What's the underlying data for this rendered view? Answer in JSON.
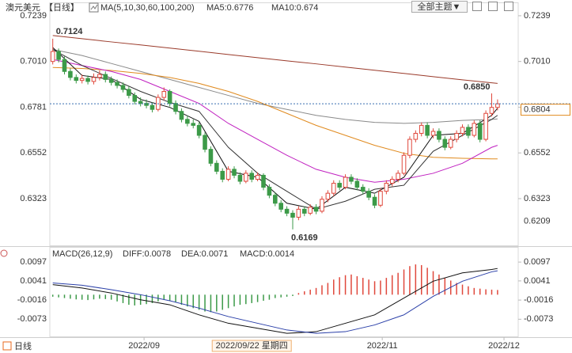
{
  "toolbar": {
    "theme_button": "全部主题▼"
  },
  "footer": {
    "period": "日线"
  },
  "chart_data": [
    {
      "type": "candlestick",
      "title": "澳元美元",
      "period": "【日线】",
      "indicator": "MA(5,10,30,60,100,200)",
      "readouts": [
        {
          "text": "MA5:0.6776",
          "color": "#222222"
        },
        {
          "text": "MA10:0.674",
          "color": "#3040c0"
        }
      ],
      "up_color": "#e0483c",
      "down_color": "#3c9a48",
      "xlim": [
        -0.5,
        77.5
      ],
      "ylim": [
        0.6089,
        0.7302
      ],
      "grid": false,
      "yticks": [
        {
          "value": 0.7239,
          "label": "0.7239"
        },
        {
          "value": 0.701,
          "label": "0.7010"
        },
        {
          "value": 0.6781,
          "label": "0.6781"
        },
        {
          "value": 0.6552,
          "label": "0.6552"
        },
        {
          "value": 0.6323,
          "label": "0.6323"
        }
      ],
      "ohlc": [
        [
          0.701,
          0.7124,
          0.6995,
          0.706
        ],
        [
          0.706,
          0.7075,
          0.7005,
          0.702
        ],
        [
          0.702,
          0.7035,
          0.6945,
          0.696
        ],
        [
          0.696,
          0.6975,
          0.6915,
          0.693
        ],
        [
          0.693,
          0.6945,
          0.69,
          0.6915
        ],
        [
          0.6915,
          0.6945,
          0.69,
          0.6925
        ],
        [
          0.6925,
          0.694,
          0.6895,
          0.691
        ],
        [
          0.691,
          0.695,
          0.6895,
          0.693
        ],
        [
          0.693,
          0.6965,
          0.6915,
          0.6945
        ],
        [
          0.6945,
          0.696,
          0.6905,
          0.692
        ],
        [
          0.692,
          0.6935,
          0.689,
          0.6905
        ],
        [
          0.6905,
          0.692,
          0.6875,
          0.689
        ],
        [
          0.689,
          0.6905,
          0.6855,
          0.687
        ],
        [
          0.687,
          0.6885,
          0.6825,
          0.684
        ],
        [
          0.684,
          0.6855,
          0.6795,
          0.681
        ],
        [
          0.681,
          0.683,
          0.6785,
          0.68
        ],
        [
          0.68,
          0.682,
          0.6775,
          0.679
        ],
        [
          0.679,
          0.6805,
          0.6755,
          0.677
        ],
        [
          0.677,
          0.6845,
          0.676,
          0.683
        ],
        [
          0.683,
          0.688,
          0.6815,
          0.686
        ],
        [
          0.686,
          0.687,
          0.6785,
          0.68
        ],
        [
          0.68,
          0.6815,
          0.6745,
          0.676
        ],
        [
          0.676,
          0.6775,
          0.6705,
          0.672
        ],
        [
          0.672,
          0.674,
          0.6685,
          0.67
        ],
        [
          0.67,
          0.672,
          0.6675,
          0.669
        ],
        [
          0.669,
          0.6705,
          0.6625,
          0.664
        ],
        [
          0.664,
          0.6655,
          0.6555,
          0.657
        ],
        [
          0.657,
          0.6585,
          0.6485,
          0.65
        ],
        [
          0.65,
          0.6515,
          0.6445,
          0.646
        ],
        [
          0.646,
          0.6475,
          0.6405,
          0.642
        ],
        [
          0.642,
          0.6485,
          0.641,
          0.647
        ],
        [
          0.647,
          0.6485,
          0.6425,
          0.644
        ],
        [
          0.644,
          0.6455,
          0.6395,
          0.641
        ],
        [
          0.641,
          0.6465,
          0.64,
          0.645
        ],
        [
          0.645,
          0.6465,
          0.6405,
          0.642
        ],
        [
          0.642,
          0.6455,
          0.641,
          0.644
        ],
        [
          0.644,
          0.645,
          0.6365,
          0.638
        ],
        [
          0.638,
          0.6395,
          0.6325,
          0.634
        ],
        [
          0.634,
          0.6355,
          0.6285,
          0.63
        ],
        [
          0.63,
          0.6315,
          0.6255,
          0.627
        ],
        [
          0.627,
          0.6285,
          0.6235,
          0.625
        ],
        [
          0.625,
          0.6265,
          0.6169,
          0.623
        ],
        [
          0.623,
          0.6285,
          0.6215,
          0.627
        ],
        [
          0.627,
          0.6285,
          0.6235,
          0.625
        ],
        [
          0.625,
          0.6295,
          0.624,
          0.628
        ],
        [
          0.628,
          0.6295,
          0.6245,
          0.626
        ],
        [
          0.626,
          0.6335,
          0.625,
          0.632
        ],
        [
          0.632,
          0.6365,
          0.6305,
          0.635
        ],
        [
          0.635,
          0.6415,
          0.6335,
          0.64
        ],
        [
          0.64,
          0.6415,
          0.6365,
          0.638
        ],
        [
          0.638,
          0.6445,
          0.637,
          0.643
        ],
        [
          0.643,
          0.6445,
          0.6395,
          0.641
        ],
        [
          0.641,
          0.6425,
          0.6365,
          0.638
        ],
        [
          0.638,
          0.6395,
          0.6345,
          0.636
        ],
        [
          0.636,
          0.6375,
          0.6315,
          0.633
        ],
        [
          0.633,
          0.6345,
          0.6275,
          0.629
        ],
        [
          0.629,
          0.6375,
          0.628,
          0.636
        ],
        [
          0.636,
          0.6415,
          0.6345,
          0.64
        ],
        [
          0.64,
          0.6435,
          0.6385,
          0.642
        ],
        [
          0.642,
          0.6465,
          0.6405,
          0.645
        ],
        [
          0.645,
          0.6555,
          0.644,
          0.654
        ],
        [
          0.654,
          0.6635,
          0.6525,
          0.662
        ],
        [
          0.662,
          0.6665,
          0.6605,
          0.665
        ],
        [
          0.665,
          0.6705,
          0.6635,
          0.669
        ],
        [
          0.669,
          0.6705,
          0.6625,
          0.664
        ],
        [
          0.664,
          0.6675,
          0.6625,
          0.666
        ],
        [
          0.666,
          0.6675,
          0.6605,
          0.662
        ],
        [
          0.662,
          0.6635,
          0.6565,
          0.658
        ],
        [
          0.658,
          0.6635,
          0.657,
          0.662
        ],
        [
          0.662,
          0.6665,
          0.6605,
          0.665
        ],
        [
          0.665,
          0.6695,
          0.6635,
          0.668
        ],
        [
          0.668,
          0.6695,
          0.6625,
          0.664
        ],
        [
          0.664,
          0.6715,
          0.663,
          0.67
        ],
        [
          0.67,
          0.6715,
          0.6605,
          0.662
        ],
        [
          0.662,
          0.6765,
          0.661,
          0.675
        ],
        [
          0.675,
          0.685,
          0.6735,
          0.678
        ],
        [
          0.678,
          0.682,
          0.6765,
          0.6798
        ]
      ],
      "ma_x": [
        0,
        5,
        10,
        15,
        20,
        25,
        30,
        35,
        40,
        45,
        50,
        55,
        60,
        65,
        70,
        75,
        76
      ],
      "ma": [
        {
          "color": "#9a3a2a",
          "values": [
            0.714,
            0.7124,
            0.7108,
            0.7093,
            0.7077,
            0.7061,
            0.7045,
            0.7029,
            0.7013,
            0.6998,
            0.6982,
            0.6966,
            0.695,
            0.6934,
            0.6918,
            0.6903,
            0.69
          ]
        },
        {
          "color": "#8a8a8a",
          "values": [
            0.707,
            0.704,
            0.7,
            0.696,
            0.692,
            0.688,
            0.684,
            0.68,
            0.677,
            0.674,
            0.672,
            0.6705,
            0.67,
            0.6705,
            0.6715,
            0.672,
            0.6722
          ]
        },
        {
          "color": "#e08a1e",
          "values": [
            0.698,
            0.6975,
            0.6965,
            0.695,
            0.693,
            0.69,
            0.686,
            0.681,
            0.675,
            0.669,
            0.664,
            0.659,
            0.655,
            0.653,
            0.6525,
            0.6522,
            0.6522
          ]
        },
        {
          "color": "#c020c0",
          "values": [
            0.702,
            0.699,
            0.696,
            0.692,
            0.686,
            0.68,
            0.67,
            0.662,
            0.654,
            0.647,
            0.643,
            0.6405,
            0.642,
            0.645,
            0.65,
            0.658,
            0.659
          ]
        },
        {
          "color": "#333333",
          "values": [
            0.707,
            0.699,
            0.6925,
            0.686,
            0.6805,
            0.676,
            0.658,
            0.645,
            0.636,
            0.627,
            0.631,
            0.637,
            0.639,
            0.656,
            0.664,
            0.672,
            0.674
          ]
        },
        {
          "color": "#111111",
          "values": [
            0.708,
            0.694,
            0.692,
            0.682,
            0.678,
            0.671,
            0.646,
            0.643,
            0.63,
            0.627,
            0.638,
            0.635,
            0.643,
            0.664,
            0.665,
            0.674,
            0.6776
          ]
        }
      ],
      "price_line": 0.6798,
      "right_labels": [
        {
          "value": 0.6804,
          "label": "0.6804",
          "boxed": true
        },
        {
          "value": 0.6209,
          "label": "0.6209",
          "boxed": false
        }
      ],
      "label_color": "#e08a1e",
      "annotations": [
        {
          "text": "0.7124",
          "x": 0,
          "y": 0.7124,
          "color": "#d9453a"
        },
        {
          "text": "0.6850",
          "x": 75,
          "y": 0.685,
          "color": "#d9453a"
        },
        {
          "text": "0.6169",
          "x": 41,
          "y": 0.6169,
          "color": "#2e9a4a"
        }
      ]
    },
    {
      "type": "macd",
      "title": "MACD(26,12,9)",
      "readouts": [
        {
          "text": "DIFF:0.0078",
          "color": "#222222"
        },
        {
          "text": "DEA:0.0071",
          "color": "#3040c0"
        },
        {
          "text": "MACD:0.0014",
          "color": "#c020c0"
        }
      ],
      "up_color": "#e0483c",
      "down_color": "#3c9a48",
      "xlim": [
        -0.5,
        77.5
      ],
      "ylim": [
        -0.0124,
        0.0142
      ],
      "grid": false,
      "yticks": [
        0.0097,
        0.0041,
        -0.0016,
        -0.0073
      ],
      "xticks": [
        {
          "value": 15.6,
          "label": "2022/09"
        },
        {
          "value": 56.3,
          "label": "2022/11"
        },
        {
          "value": 77.1,
          "label": "2022/12"
        }
      ],
      "cursor": {
        "value": 34,
        "label": "2022/09/22 星期四"
      },
      "histogram": [
        -0.0006,
        -0.0008,
        -0.001,
        -0.0012,
        -0.0014,
        -0.0015,
        -0.0016,
        -0.0014,
        -0.0012,
        -0.0013,
        -0.0015,
        -0.002,
        -0.0025,
        -0.003,
        -0.0032,
        -0.003,
        -0.0028,
        -0.0025,
        -0.002,
        -0.0015,
        -0.0018,
        -0.0022,
        -0.003,
        -0.0035,
        -0.004,
        -0.0045,
        -0.005,
        -0.0052,
        -0.005,
        -0.0045,
        -0.004,
        -0.0035,
        -0.003,
        -0.0028,
        -0.0025,
        -0.0022,
        -0.0018,
        -0.0015,
        -0.001,
        -0.0008,
        -0.0006,
        -0.0004,
        0.0005,
        0.001,
        0.0015,
        0.002,
        0.0028,
        0.0035,
        0.0045,
        0.0052,
        0.0058,
        0.006,
        0.0055,
        0.005,
        0.0045,
        0.004,
        0.0042,
        0.005,
        0.0058,
        0.0065,
        0.0075,
        0.0085,
        0.009,
        0.0088,
        0.008,
        0.007,
        0.006,
        0.005,
        0.0042,
        0.0035,
        0.003,
        0.0025,
        0.002,
        0.0018,
        0.0016,
        0.0015,
        0.0014
      ],
      "x": [
        0,
        5,
        10,
        15,
        20,
        25,
        30,
        35,
        40,
        45,
        50,
        55,
        60,
        65,
        70,
        75,
        76
      ],
      "series": [
        {
          "color": "#111111",
          "values": [
            0.003,
            0.002,
            0.0005,
            -0.0015,
            -0.003,
            -0.006,
            -0.0085,
            -0.01,
            -0.0115,
            -0.011,
            -0.0085,
            -0.006,
            -0.001,
            0.004,
            0.0065,
            0.0075,
            0.0078
          ]
        },
        {
          "color": "#2a3fa8",
          "values": [
            0.0035,
            0.0028,
            0.0015,
            0.0,
            -0.0018,
            -0.004,
            -0.0065,
            -0.0085,
            -0.0105,
            -0.0115,
            -0.011,
            -0.009,
            -0.006,
            -0.0005,
            0.004,
            0.0068,
            0.0071
          ]
        }
      ]
    }
  ]
}
